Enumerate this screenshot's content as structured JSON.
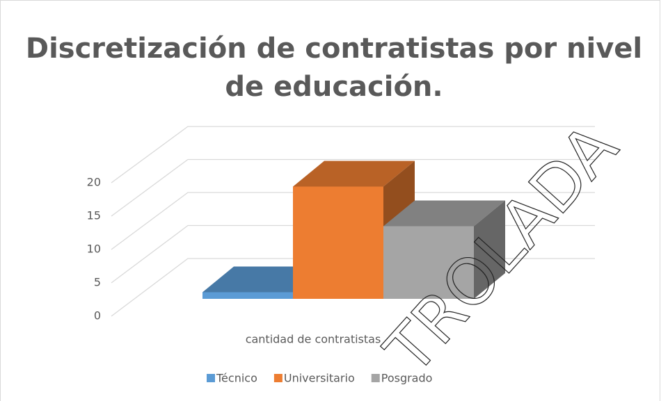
{
  "chart_data": {
    "type": "bar3d",
    "title": "Discretización de contratistas por nivel de educación.",
    "categories": [
      "cantidad de contratistas"
    ],
    "series": [
      {
        "name": "Técnico",
        "color": "#5b9bd5",
        "values": [
          1
        ]
      },
      {
        "name": "Universitario",
        "color": "#ed7d31",
        "values": [
          17
        ]
      },
      {
        "name": "Posgrado",
        "color": "#a5a5a5",
        "values": [
          11
        ]
      }
    ],
    "ylim": [
      0,
      20
    ],
    "yticks": [
      0,
      5,
      10,
      15,
      20
    ],
    "grid": true,
    "legend": "bottom",
    "watermark": "TROLADA"
  }
}
